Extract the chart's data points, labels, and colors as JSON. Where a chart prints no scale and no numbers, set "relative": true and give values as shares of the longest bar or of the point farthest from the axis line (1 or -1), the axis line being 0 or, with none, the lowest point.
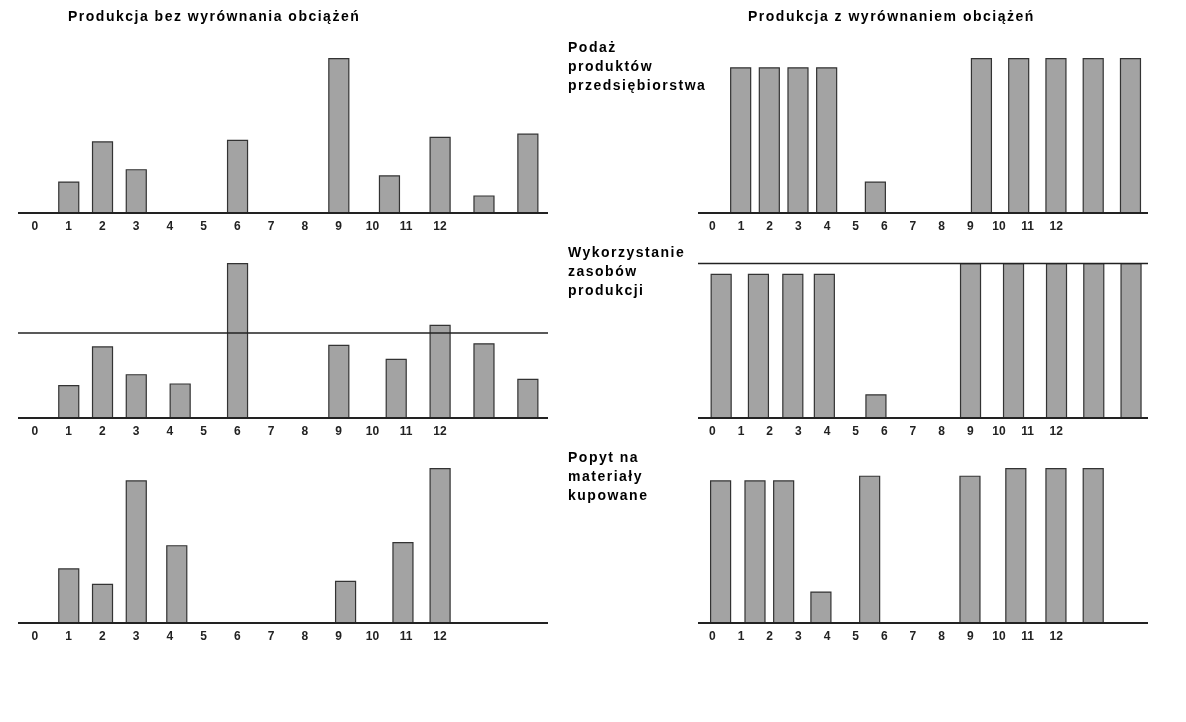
{
  "chart_data": [
    {
      "type": "bar",
      "title": "Produkcja bez wyrównania obciążeń",
      "relative": true,
      "color": "#a3a3a3",
      "xlim": [
        -0.5,
        15.2
      ],
      "xticks": [
        0,
        1,
        2,
        3,
        4,
        5,
        6,
        7,
        8,
        9,
        10,
        11,
        12
      ],
      "x": [
        1,
        2,
        3,
        6,
        9,
        10.5,
        12,
        13.3,
        14.6
      ],
      "values": [
        0.2,
        0.46,
        0.28,
        0.47,
        1,
        0.24,
        0.49,
        0.11,
        0.51
      ]
    },
    {
      "type": "bar",
      "title": "Produkcja z wyrównaniem obciążeń",
      "ylabel": "Podaż produktów przedsiębiorstwa",
      "relative": true,
      "color": "#a3a3a3",
      "xlim": [
        -0.5,
        15.2
      ],
      "xticks": [
        0,
        1,
        2,
        3,
        4,
        5,
        6,
        7,
        8,
        9,
        10,
        11,
        12
      ],
      "x": [
        1,
        2,
        3,
        4,
        5.7,
        9.4,
        10.7,
        12,
        13.3,
        14.6
      ],
      "values": [
        0.94,
        0.94,
        0.94,
        0.94,
        0.2,
        1,
        1,
        1,
        1,
        1
      ]
    },
    {
      "type": "bar",
      "relative": true,
      "color": "#a3a3a3",
      "xlim": [
        -0.5,
        15.2
      ],
      "xticks": [
        0,
        1,
        2,
        3,
        4,
        5,
        6,
        7,
        8,
        9,
        10,
        11,
        12
      ],
      "x": [
        1,
        2,
        3,
        4.3,
        6,
        9,
        10.7,
        12,
        13.3,
        14.6
      ],
      "values": [
        0.21,
        0.46,
        0.28,
        0.22,
        1,
        0.47,
        0.38,
        0.6,
        0.48,
        0.25
      ],
      "ref_lines": [
        {
          "axis": "y",
          "value": 0.55,
          "color": "#222222"
        }
      ]
    },
    {
      "type": "bar",
      "ylabel": "Wykorzystanie zasobów produkcji",
      "relative": true,
      "color": "#a3a3a3",
      "xlim": [
        -0.5,
        15.2
      ],
      "xticks": [
        0,
        1,
        2,
        3,
        4,
        5,
        6,
        7,
        8,
        9,
        10,
        11,
        12
      ],
      "x": [
        0.3,
        1.6,
        2.8,
        3.9,
        5.7,
        9,
        10.5,
        12,
        13.3,
        14.6
      ],
      "values": [
        0.93,
        0.93,
        0.93,
        0.93,
        0.15,
        1,
        1,
        1,
        1,
        1
      ],
      "ref_lines": [
        {
          "axis": "y",
          "value": 1,
          "color": "#222222"
        }
      ]
    },
    {
      "type": "bar",
      "relative": true,
      "color": "#a3a3a3",
      "xlim": [
        -0.5,
        15.2
      ],
      "xticks": [
        0,
        1,
        2,
        3,
        4,
        5,
        6,
        7,
        8,
        9,
        10,
        11,
        12
      ],
      "x": [
        1,
        2,
        3,
        4.2,
        9.2,
        10.9,
        12
      ],
      "values": [
        0.35,
        0.25,
        0.92,
        0.5,
        0.27,
        0.52,
        1
      ]
    },
    {
      "type": "bar",
      "ylabel": "Popyt na materiały kupowane",
      "relative": true,
      "color": "#a3a3a3",
      "xlim": [
        -0.5,
        15.2
      ],
      "xticks": [
        0,
        1,
        2,
        3,
        4,
        5,
        6,
        7,
        8,
        9,
        10,
        11,
        12
      ],
      "x": [
        0.3,
        1.5,
        2.5,
        3.8,
        5.5,
        9,
        10.6,
        12,
        13.3
      ],
      "values": [
        0.92,
        0.92,
        0.92,
        0.2,
        0.95,
        0.95,
        1,
        1,
        1
      ]
    }
  ]
}
